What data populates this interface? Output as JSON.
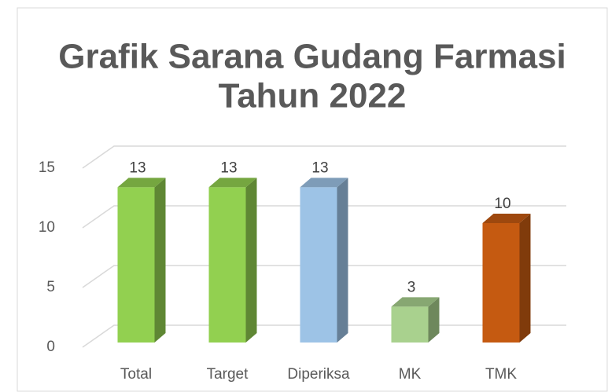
{
  "chart_data": {
    "type": "bar3d",
    "title": [
      "Grafik Sarana Gudang Farmasi",
      "Tahun 2022"
    ],
    "categories": [
      "Total",
      "Target",
      "Diperiksa",
      "MK",
      "TMK"
    ],
    "values": [
      13,
      13,
      13,
      3,
      10
    ],
    "colors": [
      "#92d050",
      "#92d050",
      "#9dc3e6",
      "#a9d18e",
      "#c55a11"
    ],
    "ylim": [
      0,
      15
    ],
    "yticks": [
      0,
      5,
      10,
      15
    ],
    "grid": true
  }
}
